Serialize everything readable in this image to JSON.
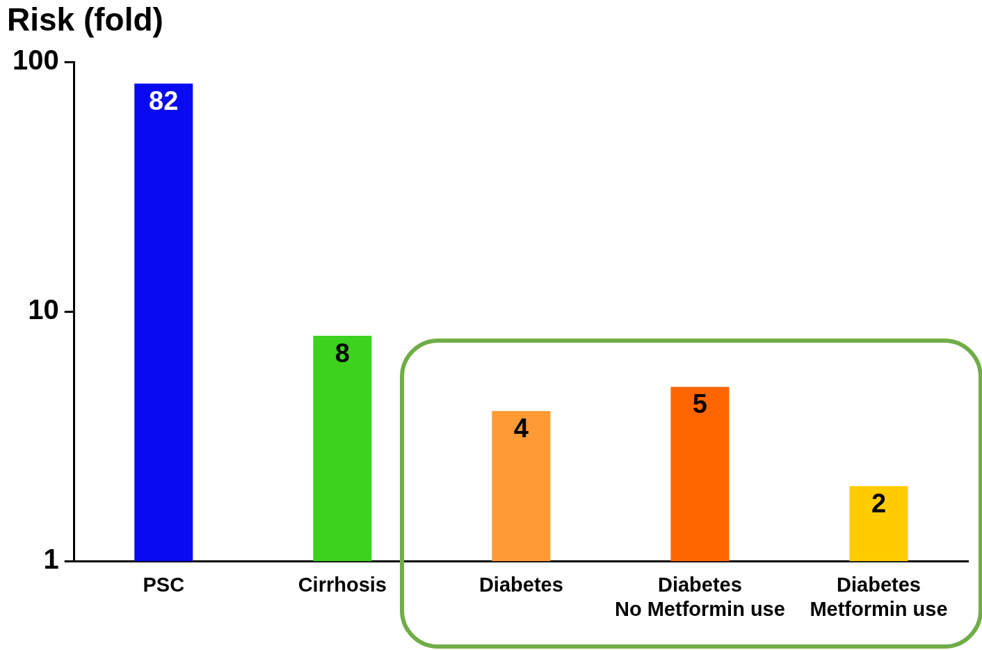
{
  "chart_data": {
    "type": "bar",
    "title": "Risk (fold)",
    "categories": [
      "PSC",
      "Cirrhosis",
      "Diabetes",
      "Diabetes\nNo Metformin use",
      "Diabetes\nMetformin use"
    ],
    "values": [
      82,
      8,
      4,
      5,
      2
    ],
    "colors": [
      "#0a0af0",
      "#3cd21e",
      "#ff9a35",
      "#ff6600",
      "#ffcc00"
    ],
    "log": "y",
    "ylim": [
      1,
      100
    ],
    "yticks": [
      1,
      10,
      100
    ],
    "data_labels": true
  }
}
